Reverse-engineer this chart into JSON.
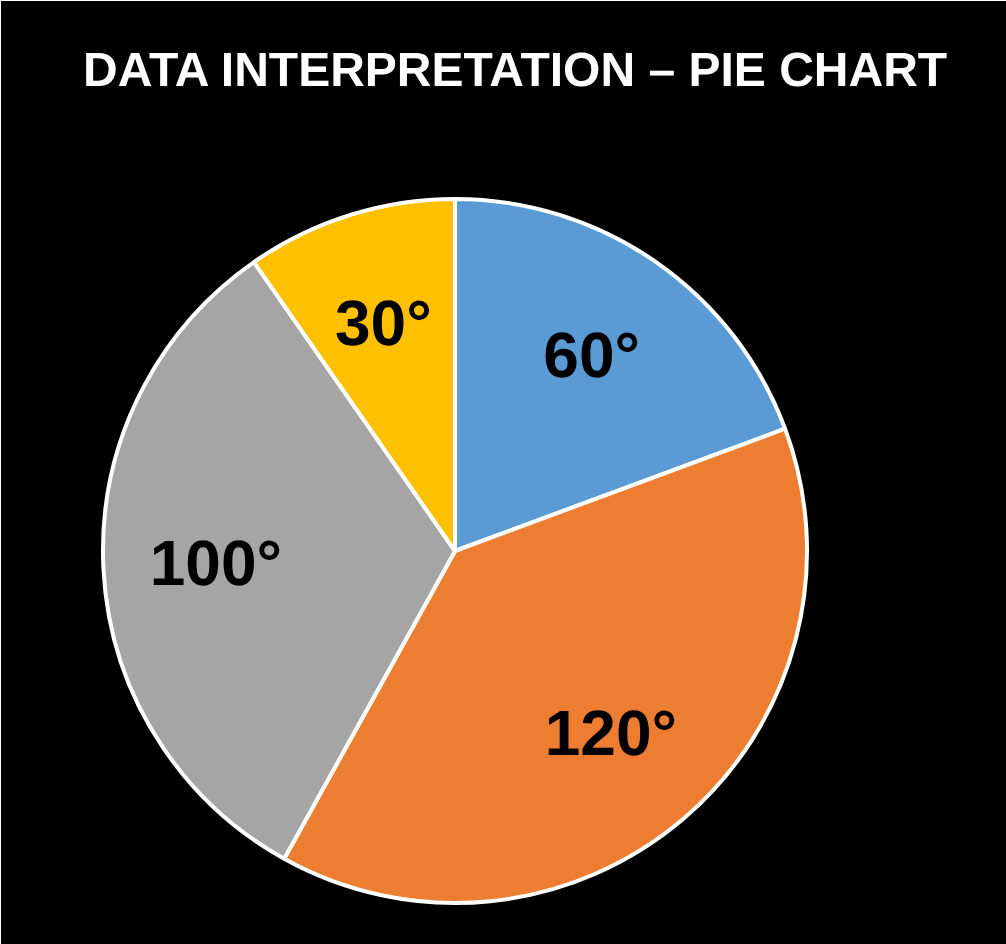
{
  "chart_data": {
    "type": "pie",
    "title": "DATA INTERPRETATION – PIE CHART",
    "categories": [
      null,
      null,
      null,
      null
    ],
    "values": [
      60,
      120,
      100,
      30
    ],
    "colors": [
      "#5b9bd5",
      "#ed7d31",
      "#a5a5a5",
      "#ffc000"
    ],
    "value_labels": [
      "60°",
      "120°",
      "100°",
      "30°"
    ]
  }
}
